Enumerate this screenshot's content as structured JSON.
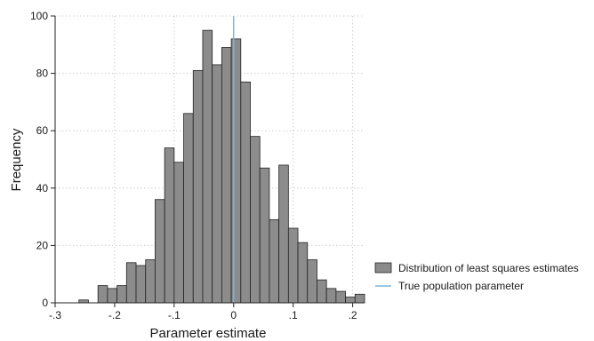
{
  "chart_data": {
    "type": "bar",
    "title": "",
    "xlabel": "Parameter estimate",
    "ylabel": "Frequency",
    "xlim": [
      -0.3,
      0.22
    ],
    "ylim": [
      0,
      100
    ],
    "x_ticks": [
      -0.3,
      -0.2,
      -0.1,
      0,
      0.1,
      0.2
    ],
    "x_tick_labels": [
      "-.3",
      "-.2",
      "-.1",
      "0",
      ".1",
      ".2"
    ],
    "y_ticks": [
      0,
      20,
      40,
      60,
      80,
      100
    ],
    "y_tick_labels": [
      "0",
      "20",
      "40",
      "60",
      "80",
      "100"
    ],
    "grid": true,
    "legend_position": "right",
    "bin_width": 0.016,
    "bin_edges_start": -0.26,
    "series": [
      {
        "name": "Distribution of least squares estimates",
        "kind": "histogram",
        "color": "#8c8c8c",
        "edge_color": "#222222",
        "values": [
          1,
          0,
          6,
          5,
          6,
          14,
          13,
          15,
          36,
          54,
          49,
          66,
          81,
          95,
          83,
          89,
          92,
          77,
          58,
          47,
          29,
          48,
          26,
          21,
          15,
          8,
          5,
          4,
          2,
          3
        ]
      },
      {
        "name": "True population parameter",
        "kind": "vline",
        "color": "#7fb3d5",
        "x": 0
      }
    ]
  }
}
